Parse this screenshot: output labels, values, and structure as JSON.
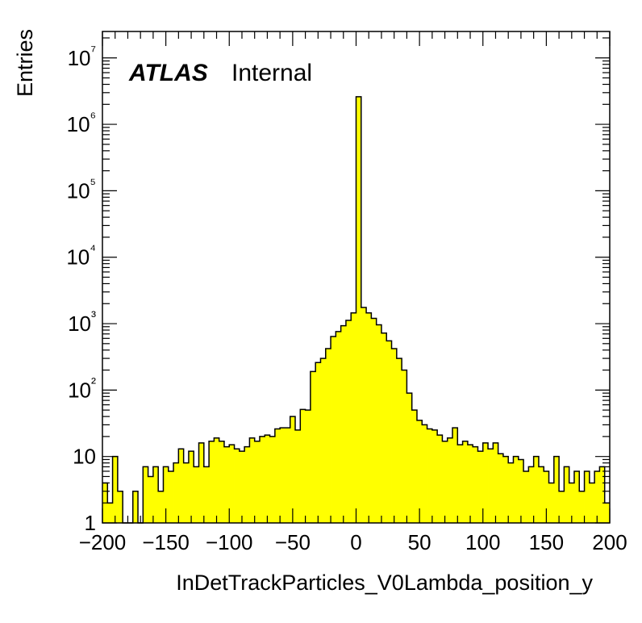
{
  "chart_data": {
    "type": "bar",
    "style": "histogram",
    "fill_color": "#ffff00",
    "line_color": "#000000",
    "xlabel": "InDetTrackParticles_V0Lambda_position_y",
    "ylabel": "Entries",
    "xlim": [
      -200,
      200
    ],
    "ylim": [
      1,
      25000000
    ],
    "y_scale": "log",
    "bin_width": 4,
    "x_ticks": [
      "−200",
      "−150",
      "−100",
      "−50",
      "0",
      "50",
      "100",
      "150",
      "200"
    ],
    "y_ticks": [
      "1",
      "10",
      "10²",
      "10³",
      "10⁴",
      "10⁵",
      "10⁶",
      "10⁷"
    ],
    "label_bold": "ATLAS",
    "label_status": "Internal",
    "bins": [
      [
        -200,
        4
      ],
      [
        -196,
        2
      ],
      [
        -192,
        10
      ],
      [
        -188,
        3
      ],
      [
        -184,
        1
      ],
      [
        -180,
        0
      ],
      [
        -176,
        3
      ],
      [
        -172,
        0
      ],
      [
        -168,
        7
      ],
      [
        -164,
        5
      ],
      [
        -160,
        7
      ],
      [
        -156,
        3
      ],
      [
        -152,
        7
      ],
      [
        -148,
        6
      ],
      [
        -144,
        8
      ],
      [
        -140,
        13
      ],
      [
        -136,
        8
      ],
      [
        -132,
        12
      ],
      [
        -128,
        7
      ],
      [
        -124,
        16
      ],
      [
        -120,
        7
      ],
      [
        -116,
        17
      ],
      [
        -112,
        19
      ],
      [
        -108,
        17
      ],
      [
        -104,
        14
      ],
      [
        -100,
        15
      ],
      [
        -96,
        13
      ],
      [
        -92,
        12
      ],
      [
        -88,
        14
      ],
      [
        -84,
        19
      ],
      [
        -80,
        17
      ],
      [
        -76,
        20
      ],
      [
        -72,
        21
      ],
      [
        -68,
        20
      ],
      [
        -64,
        26
      ],
      [
        -60,
        27
      ],
      [
        -56,
        27
      ],
      [
        -52,
        40
      ],
      [
        -48,
        25
      ],
      [
        -44,
        51
      ],
      [
        -40,
        50
      ],
      [
        -36,
        190
      ],
      [
        -32,
        260
      ],
      [
        -28,
        300
      ],
      [
        -24,
        420
      ],
      [
        -20,
        640
      ],
      [
        -16,
        760
      ],
      [
        -12,
        930
      ],
      [
        -8,
        1120
      ],
      [
        -4,
        1450
      ],
      [
        0,
        2600000
      ],
      [
        4,
        1750
      ],
      [
        8,
        1450
      ],
      [
        12,
        1200
      ],
      [
        16,
        960
      ],
      [
        20,
        720
      ],
      [
        24,
        550
      ],
      [
        28,
        420
      ],
      [
        32,
        300
      ],
      [
        36,
        200
      ],
      [
        40,
        90
      ],
      [
        44,
        50
      ],
      [
        48,
        35
      ],
      [
        52,
        30
      ],
      [
        56,
        26
      ],
      [
        60,
        25
      ],
      [
        64,
        21
      ],
      [
        68,
        17
      ],
      [
        72,
        19
      ],
      [
        76,
        27
      ],
      [
        80,
        15
      ],
      [
        84,
        17
      ],
      [
        88,
        15
      ],
      [
        92,
        14
      ],
      [
        96,
        12
      ],
      [
        100,
        16
      ],
      [
        104,
        13
      ],
      [
        108,
        16
      ],
      [
        112,
        11
      ],
      [
        116,
        10
      ],
      [
        120,
        8
      ],
      [
        124,
        10
      ],
      [
        128,
        9
      ],
      [
        132,
        6
      ],
      [
        136,
        7
      ],
      [
        140,
        10
      ],
      [
        144,
        7
      ],
      [
        148,
        6
      ],
      [
        152,
        4
      ],
      [
        156,
        10
      ],
      [
        160,
        3
      ],
      [
        164,
        7
      ],
      [
        168,
        4
      ],
      [
        172,
        6
      ],
      [
        176,
        3
      ],
      [
        180,
        6
      ],
      [
        184,
        4
      ],
      [
        188,
        6
      ],
      [
        192,
        7
      ],
      [
        196,
        2
      ]
    ]
  }
}
